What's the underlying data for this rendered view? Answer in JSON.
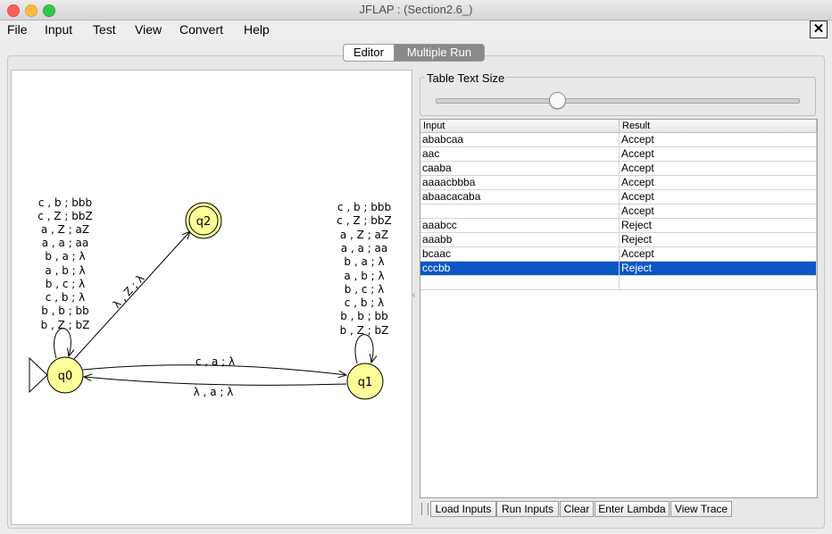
{
  "window": {
    "title": "JFLAP : (Section2.6_)"
  },
  "menu": [
    "File",
    "Input",
    "Test",
    "View",
    "Convert",
    "Help"
  ],
  "close_label": "✕",
  "tabs": {
    "editor": "Editor",
    "multiple_run": "Multiple Run",
    "active": "multiple_run"
  },
  "automaton": {
    "states": [
      {
        "name": "q0",
        "initial": true,
        "final": false
      },
      {
        "name": "q1",
        "initial": false,
        "final": false
      },
      {
        "name": "q2",
        "initial": false,
        "final": true
      }
    ],
    "q0_loop_labels": [
      "c , b ; bbb",
      "c , Z ; bbZ",
      "a , Z ; aZ",
      "a , a ; aa",
      "b , a ; λ",
      "a , b ; λ",
      "b , c ; λ",
      "c , b ; λ",
      "b , b ; bb",
      "b , Z ; bZ"
    ],
    "q1_loop_labels": [
      "c , b ; bbb",
      "c , Z ; bbZ",
      "a , Z ; aZ",
      "a , a ; aa",
      "b , a ; λ",
      "a , b ; λ",
      "b , c ; λ",
      "c , b ; λ",
      "b , b ; bb",
      "b , Z ; bZ"
    ],
    "edge_q0_q2": "λ , Z ; λ",
    "edge_q0_q1": "c , a ; λ",
    "edge_q1_q0": "λ , a ; λ"
  },
  "table_text_size": {
    "label": "Table Text Size",
    "value": 0.33
  },
  "results_table": {
    "headers": [
      "Input",
      "Result"
    ],
    "rows": [
      [
        "ababcaa",
        "Accept"
      ],
      [
        "aac",
        "Accept"
      ],
      [
        "caaba",
        "Accept"
      ],
      [
        "aaaacbbba",
        "Accept"
      ],
      [
        "abaacacaba",
        "Accept"
      ],
      [
        "",
        "Accept"
      ],
      [
        "aaabcc",
        "Reject"
      ],
      [
        "aaabb",
        "Reject"
      ],
      [
        "bcaac",
        "Accept"
      ],
      [
        "cccbb",
        "Reject"
      ]
    ],
    "selected_row": 9
  },
  "buttons": [
    "Load Inputs",
    "Run Inputs",
    "Clear",
    "Enter Lambda",
    "View Trace"
  ],
  "colors": {
    "state_fill": "#ffff99",
    "selection": "#0c56c8"
  }
}
